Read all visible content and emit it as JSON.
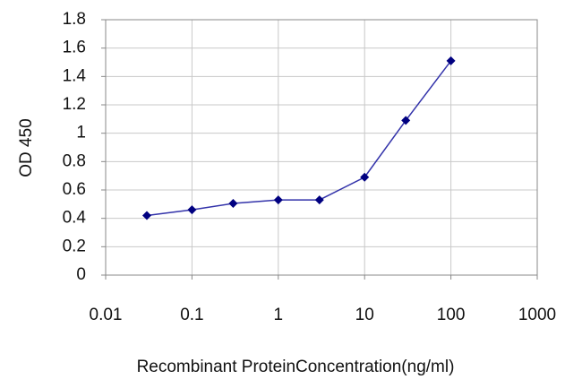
{
  "chart_data": {
    "type": "line",
    "x_label": "Recombinant ProteinConcentration(ng/ml)",
    "y_label": "OD 450",
    "x": [
      0.03,
      0.1,
      0.3,
      1,
      3,
      10,
      30,
      100
    ],
    "values": [
      0.42,
      0.46,
      0.505,
      0.53,
      0.53,
      0.69,
      1.09,
      1.51
    ],
    "color": "#3333aa",
    "marker_color": "#000080",
    "xscale": "log",
    "xlim": [
      0.01,
      1000
    ],
    "xticks": [
      0.01,
      0.1,
      1,
      10,
      100,
      1000
    ],
    "ylim": [
      0,
      1.8
    ],
    "yticks": [
      0,
      0.2,
      0.4,
      0.6,
      0.8,
      1,
      1.2,
      1.4,
      1.6,
      1.8
    ],
    "grid": true
  }
}
